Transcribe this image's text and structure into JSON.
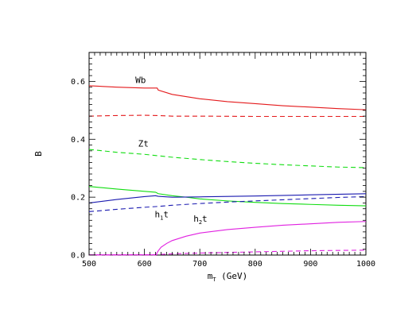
{
  "chart_data": {
    "type": "line",
    "xlabel": "m",
    "xlabel_sub": "T",
    "xlabel_unit": " (GeV)",
    "ylabel": "B",
    "xlim": [
      500,
      1000
    ],
    "ylim": [
      0,
      0.7
    ],
    "x_ticks": [
      500,
      600,
      700,
      800,
      900,
      1000
    ],
    "x_tick_labels": [
      "500",
      "600",
      "700",
      "800",
      "900",
      "1000"
    ],
    "y_ticks": [
      0,
      0.2,
      0.4,
      0.6
    ],
    "y_tick_labels": [
      "0.0",
      "0.2",
      "0.4",
      "0.6"
    ],
    "grid": false,
    "annotations": [
      {
        "text": "Wb",
        "sub": "",
        "suffix": "",
        "x": 595,
        "y": 0.595
      },
      {
        "text": "Zt",
        "sub": "",
        "suffix": "",
        "x": 600,
        "y": 0.375
      },
      {
        "text": "h",
        "sub": "1",
        "suffix": "t",
        "x": 630,
        "y": 0.13
      },
      {
        "text": "h",
        "sub": "2",
        "suffix": "t",
        "x": 700,
        "y": 0.115
      }
    ],
    "series": [
      {
        "color": "#e41a1c",
        "dash": false,
        "points": [
          [
            500,
            0.585
          ],
          [
            550,
            0.58
          ],
          [
            600,
            0.577
          ],
          [
            623,
            0.577
          ],
          [
            625,
            0.57
          ],
          [
            650,
            0.555
          ],
          [
            700,
            0.54
          ],
          [
            750,
            0.53
          ],
          [
            800,
            0.523
          ],
          [
            850,
            0.516
          ],
          [
            900,
            0.511
          ],
          [
            950,
            0.506
          ],
          [
            1000,
            0.502
          ]
        ]
      },
      {
        "color": "#e41a1c",
        "dash": true,
        "points": [
          [
            500,
            0.48
          ],
          [
            550,
            0.482
          ],
          [
            600,
            0.483
          ],
          [
            625,
            0.482
          ],
          [
            650,
            0.48
          ],
          [
            700,
            0.48
          ],
          [
            800,
            0.479
          ],
          [
            900,
            0.479
          ],
          [
            1000,
            0.479
          ]
        ]
      },
      {
        "color": "#11dd11",
        "dash": true,
        "points": [
          [
            500,
            0.365
          ],
          [
            550,
            0.355
          ],
          [
            600,
            0.348
          ],
          [
            625,
            0.343
          ],
          [
            650,
            0.338
          ],
          [
            700,
            0.33
          ],
          [
            750,
            0.323
          ],
          [
            800,
            0.317
          ],
          [
            850,
            0.312
          ],
          [
            900,
            0.308
          ],
          [
            950,
            0.304
          ],
          [
            1000,
            0.302
          ]
        ]
      },
      {
        "color": "#11dd11",
        "dash": false,
        "points": [
          [
            500,
            0.237
          ],
          [
            550,
            0.228
          ],
          [
            600,
            0.22
          ],
          [
            620,
            0.217
          ],
          [
            625,
            0.212
          ],
          [
            650,
            0.205
          ],
          [
            675,
            0.2
          ],
          [
            700,
            0.194
          ],
          [
            750,
            0.187
          ],
          [
            800,
            0.182
          ],
          [
            850,
            0.178
          ],
          [
            900,
            0.175
          ],
          [
            950,
            0.172
          ],
          [
            1000,
            0.17
          ]
        ]
      },
      {
        "color": "#1a1ab0",
        "dash": false,
        "points": [
          [
            500,
            0.18
          ],
          [
            550,
            0.192
          ],
          [
            600,
            0.202
          ],
          [
            620,
            0.205
          ],
          [
            625,
            0.203
          ],
          [
            650,
            0.2
          ],
          [
            700,
            0.201
          ],
          [
            800,
            0.204
          ],
          [
            900,
            0.208
          ],
          [
            1000,
            0.212
          ]
        ]
      },
      {
        "color": "#1a1ab0",
        "dash": true,
        "points": [
          [
            500,
            0.15
          ],
          [
            550,
            0.158
          ],
          [
            600,
            0.165
          ],
          [
            625,
            0.168
          ],
          [
            650,
            0.172
          ],
          [
            700,
            0.178
          ],
          [
            750,
            0.183
          ],
          [
            800,
            0.187
          ],
          [
            850,
            0.191
          ],
          [
            900,
            0.195
          ],
          [
            950,
            0.199
          ],
          [
            1000,
            0.202
          ]
        ]
      },
      {
        "color": "#e020e0",
        "dash": false,
        "points": [
          [
            620,
            0.0
          ],
          [
            622,
            0.005
          ],
          [
            625,
            0.015
          ],
          [
            630,
            0.027
          ],
          [
            640,
            0.04
          ],
          [
            650,
            0.05
          ],
          [
            675,
            0.065
          ],
          [
            700,
            0.076
          ],
          [
            750,
            0.088
          ],
          [
            800,
            0.096
          ],
          [
            850,
            0.103
          ],
          [
            900,
            0.108
          ],
          [
            950,
            0.113
          ],
          [
            1000,
            0.116
          ]
        ]
      },
      {
        "color": "#e020e0",
        "dash": true,
        "points": [
          [
            500,
            0.0
          ],
          [
            600,
            0.001
          ],
          [
            620,
            0.001
          ],
          [
            625,
            0.002
          ],
          [
            650,
            0.004
          ],
          [
            700,
            0.007
          ],
          [
            750,
            0.009
          ],
          [
            800,
            0.011
          ],
          [
            850,
            0.013
          ],
          [
            900,
            0.015
          ],
          [
            950,
            0.016
          ],
          [
            1000,
            0.017
          ]
        ]
      },
      {
        "color": "#e020e0",
        "dash": false,
        "points": [
          [
            500,
            0.001
          ],
          [
            560,
            0.001
          ],
          [
            620,
            0.001
          ]
        ]
      }
    ]
  }
}
